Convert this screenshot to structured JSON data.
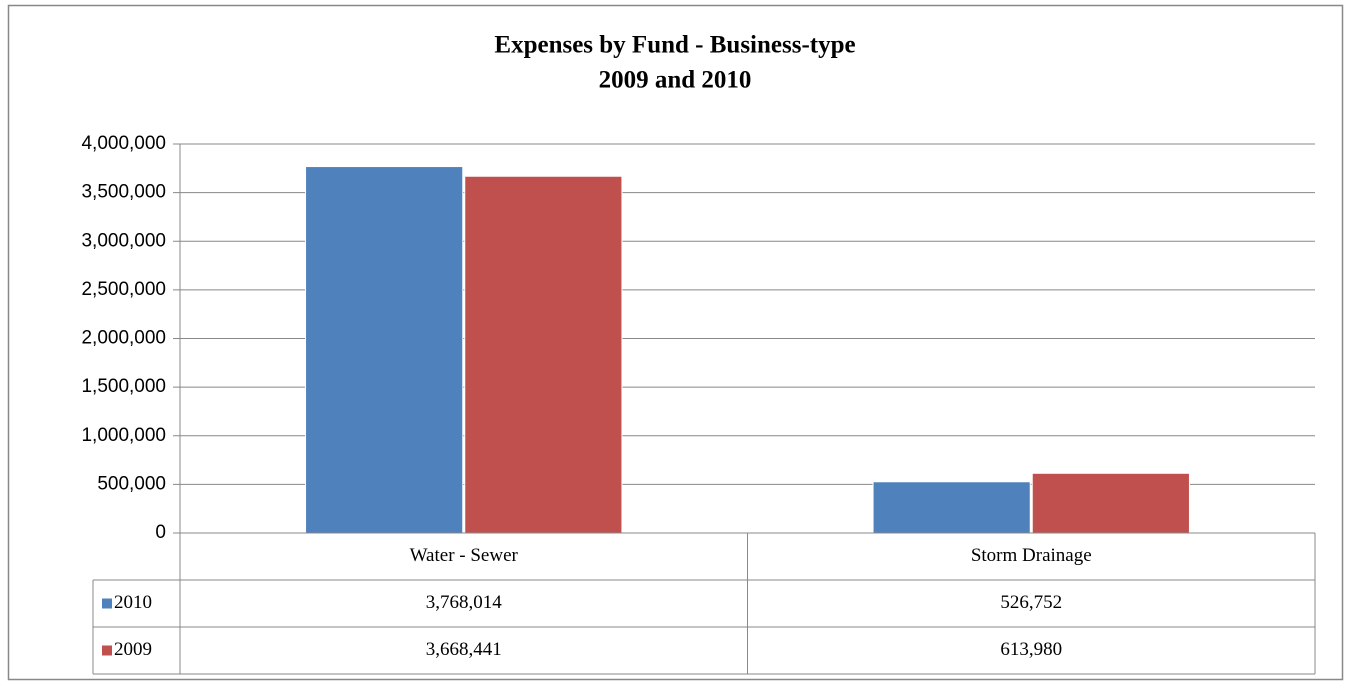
{
  "chart_data": {
    "type": "bar",
    "title": [
      "Expenses by Fund - Business-type",
      "2009 and 2010"
    ],
    "categories": [
      "Water - Sewer",
      "Storm Drainage"
    ],
    "series": [
      {
        "name": "2010",
        "color": "#4f81bd",
        "values": [
          3768014,
          526752
        ],
        "value_labels": [
          "3,768,014",
          "526,752"
        ]
      },
      {
        "name": "2009",
        "color": "#c0504d",
        "values": [
          3668441,
          613980
        ],
        "value_labels": [
          "3,668,441",
          "613,980"
        ]
      }
    ],
    "ylim": [
      0,
      4000000
    ],
    "yticks": [
      0,
      {
        "value": 500000,
        "label": "500,000"
      },
      {
        "value": 1000000,
        "label": "1,000,000"
      },
      {
        "value": 1500000,
        "label": "1,500,000"
      },
      {
        "value": 2000000,
        "label": "2,000,000"
      },
      {
        "value": 2500000,
        "label": "2,500,000"
      },
      {
        "value": 3000000,
        "label": "3,000,000"
      },
      {
        "value": 3500000,
        "label": "3,500,000"
      },
      {
        "value": 4000000,
        "label": "4,000,000"
      }
    ],
    "grid": true
  }
}
